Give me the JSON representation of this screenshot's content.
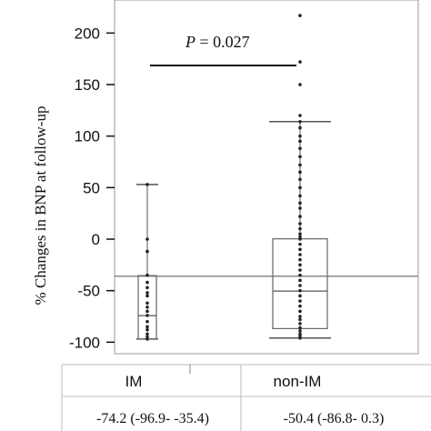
{
  "chart_data": {
    "type": "box",
    "ylabel": "% Changes in BNP at follow-up",
    "ylim": [
      -110,
      220
    ],
    "yticks": [
      -100,
      -50,
      0,
      50,
      100,
      150,
      200
    ],
    "reference_line": -36,
    "categories": [
      "IM",
      "non-IM"
    ],
    "boxes": [
      {
        "name": "IM",
        "min": -97,
        "q1": -96.9,
        "median": -74.2,
        "q3": -35.4,
        "max": 53,
        "points": [
          53,
          0,
          -12,
          -35,
          -42,
          -47,
          -52,
          -55,
          -62,
          -66,
          -70,
          -74,
          -80,
          -85,
          -88,
          -92,
          -95,
          -97
        ]
      },
      {
        "name": "non-IM",
        "min": -96,
        "q1": -86.8,
        "median": -50.4,
        "q3": 0.3,
        "max": 114,
        "points": [
          217,
          172,
          150,
          120,
          114,
          108,
          100,
          95,
          88,
          80,
          72,
          65,
          58,
          50,
          42,
          35,
          30,
          22,
          15,
          10,
          5,
          2,
          0,
          -5,
          -10,
          -15,
          -20,
          -25,
          -30,
          -35,
          -40,
          -45,
          -50,
          -55,
          -60,
          -65,
          -70,
          -75,
          -78,
          -82,
          -86,
          -89,
          -92,
          -94,
          -96
        ]
      }
    ],
    "annotation": {
      "p_label": "P",
      "p_rest": " = 0.027"
    },
    "summaries": [
      "-74.2 (-96.9- -35.4)",
      "-50.4 (-86.8- 0.3)"
    ]
  }
}
